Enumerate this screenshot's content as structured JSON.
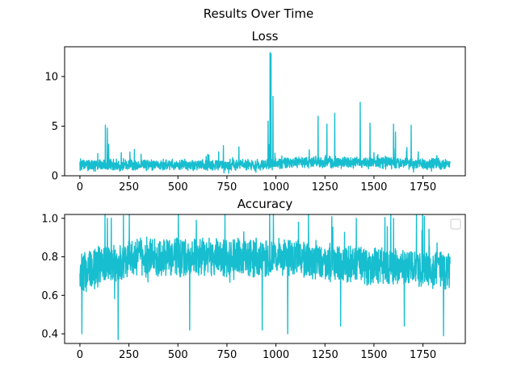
{
  "figure": {
    "suptitle": "Results Over Time"
  },
  "colors": {
    "series": "#17becf",
    "axis": "#000000",
    "background": "#ffffff",
    "legend_border": "#cccccc"
  },
  "chart_data": [
    {
      "type": "line",
      "title": "Loss",
      "xlabel": "",
      "ylabel": "",
      "xlim": [
        -78,
        1966
      ],
      "ylim": [
        0,
        13
      ],
      "grid": false,
      "x_ticks": [
        0,
        250,
        500,
        750,
        1000,
        1250,
        1500,
        1750
      ],
      "x_tick_labels": [
        "0",
        "250",
        "500",
        "750",
        "1000",
        "1250",
        "1500",
        "1750"
      ],
      "y_ticks": [
        0,
        5,
        10
      ],
      "y_tick_labels": [
        "0",
        "5",
        "10"
      ],
      "series": [
        {
          "x_start": 0,
          "x_step": 1,
          "n_points": 1889,
          "baseline": [
            [
              0,
              1.1
            ],
            [
              940,
              1.1
            ],
            [
              1100,
              1.4
            ],
            [
              1888,
              1.2
            ]
          ],
          "noise_amplitude": [
            0.55,
            1.3
          ],
          "spikes": [
            [
              130,
              5.1
            ],
            [
              140,
              4.8
            ],
            [
              960,
              5.5
            ],
            [
              970,
              12.4
            ],
            [
              975,
              12.3
            ],
            [
              985,
              8.0
            ],
            [
              1215,
              6.0
            ],
            [
              1260,
              5.2
            ],
            [
              1300,
              6.3
            ],
            [
              1430,
              7.4
            ],
            [
              1480,
              5.3
            ],
            [
              1600,
              5.2
            ],
            [
              1610,
              4.4
            ],
            [
              1690,
              5.1
            ]
          ]
        }
      ]
    },
    {
      "type": "line",
      "title": "Accuracy",
      "xlabel": "",
      "ylabel": "",
      "xlim": [
        -78,
        1966
      ],
      "ylim": [
        0.35,
        1.02
      ],
      "grid": false,
      "legend": "upper right (empty)",
      "x_ticks": [
        0,
        250,
        500,
        750,
        1000,
        1250,
        1500,
        1750
      ],
      "x_tick_labels": [
        "0",
        "250",
        "500",
        "750",
        "1000",
        "1250",
        "1500",
        "1750"
      ],
      "y_ticks": [
        0.4,
        0.6,
        0.8,
        1.0
      ],
      "y_tick_labels": [
        "0.4",
        "0.6",
        "0.8",
        "1.0"
      ],
      "series": [
        {
          "x_start": 0,
          "x_step": 1,
          "n_points": 1889,
          "baseline": [
            [
              0,
              0.72
            ],
            [
              300,
              0.8
            ],
            [
              1000,
              0.8
            ],
            [
              1400,
              0.76
            ],
            [
              1888,
              0.73
            ]
          ],
          "noise_amplitude": [
            0.15,
            0.22
          ],
          "spikes": [
            [
              10,
              0.4
            ],
            [
              195,
              0.37
            ],
            [
              560,
              0.42
            ],
            [
              930,
              0.42
            ],
            [
              1060,
              0.4
            ],
            [
              1330,
              0.44
            ],
            [
              1655,
              0.44
            ],
            [
              1855,
              0.39
            ],
            [
              140,
              1.0
            ],
            [
              1410,
              1.0
            ],
            [
              1600,
              1.0
            ]
          ]
        }
      ]
    }
  ]
}
